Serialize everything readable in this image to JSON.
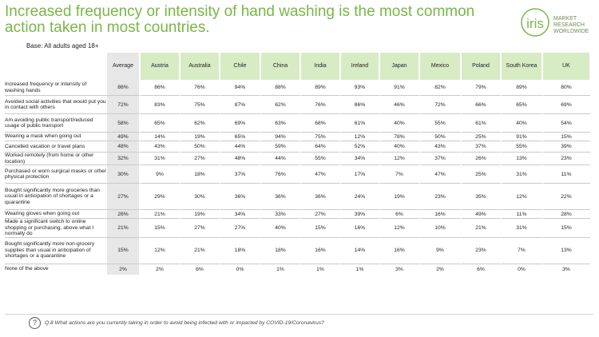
{
  "header": {
    "title": "Increased frequency or intensity of hand washing is the most common action taken in most countries.",
    "base": "Base: All adults aged 18+"
  },
  "logo": {
    "mark": "iris",
    "line1": "MARKET",
    "line2": "RESEARCH",
    "line3": "WORLDWIDE"
  },
  "table": {
    "columns": [
      "Average",
      "Austria",
      "Australia",
      "Chile",
      "China",
      "India",
      "Ireland",
      "Japan",
      "Mexico",
      "Poland",
      "South Korea",
      "UK"
    ],
    "rows": [
      {
        "label": "Increased frequency or intensity of washing hands",
        "values": [
          "86%",
          "86%",
          "76%",
          "94%",
          "88%",
          "89%",
          "93%",
          "91%",
          "82%",
          "79%",
          "89%",
          "80%"
        ]
      },
      {
        "label": "Avoided social activities that would put you in contact with others",
        "values": [
          "72%",
          "83%",
          "75%",
          "87%",
          "62%",
          "76%",
          "86%",
          "46%",
          "72%",
          "66%",
          "65%",
          "69%"
        ]
      },
      {
        "label": "Am avoiding public transport/reduced usage of public transport",
        "values": [
          "58%",
          "65%",
          "62%",
          "69%",
          "63%",
          "68%",
          "61%",
          "40%",
          "55%",
          "61%",
          "40%",
          "54%"
        ]
      },
      {
        "label": "Wearing a mask when going out",
        "values": [
          "49%",
          "14%",
          "19%",
          "65%",
          "94%",
          "75%",
          "12%",
          "78%",
          "50%",
          "25%",
          "91%",
          "15%"
        ]
      },
      {
        "label": "Cancelled vacation or travel plans",
        "values": [
          "48%",
          "43%",
          "50%",
          "44%",
          "59%",
          "64%",
          "52%",
          "40%",
          "43%",
          "37%",
          "55%",
          "39%"
        ]
      },
      {
        "label": "Worked remotely (from home or other location)",
        "values": [
          "32%",
          "31%",
          "27%",
          "48%",
          "44%",
          "55%",
          "34%",
          "12%",
          "37%",
          "26%",
          "13%",
          "23%"
        ]
      },
      {
        "label": "Purchased or worn surgical masks or other physical protection",
        "values": [
          "30%",
          "9%",
          "18%",
          "37%",
          "76%",
          "47%",
          "17%",
          "7%",
          "47%",
          "25%",
          "31%",
          "11%"
        ]
      },
      {
        "label": "Bought significantly more groceries than usual in anticipation of shortages or a quarantine",
        "values": [
          "27%",
          "29%",
          "30%",
          "36%",
          "36%",
          "36%",
          "24%",
          "19%",
          "23%",
          "35%",
          "12%",
          "22%"
        ]
      },
      {
        "label": "Wearing gloves when going out",
        "values": [
          "26%",
          "21%",
          "19%",
          "34%",
          "33%",
          "27%",
          "39%",
          "6%",
          "16%",
          "49%",
          "11%",
          "28%"
        ]
      },
      {
        "label": "Made a significant switch to online shopping or purchasing, above what I normally do",
        "values": [
          "21%",
          "15%",
          "27%",
          "27%",
          "40%",
          "15%",
          "16%",
          "12%",
          "10%",
          "21%",
          "31%",
          "15%"
        ]
      },
      {
        "label": "Bought significantly more non-grocery supplies than usual in anticipation of shortages or a quarantine",
        "values": [
          "15%",
          "12%",
          "21%",
          "18%",
          "18%",
          "16%",
          "14%",
          "16%",
          "9%",
          "23%",
          "7%",
          "13%"
        ]
      },
      {
        "label": "None of the above",
        "values": [
          "2%",
          "2%",
          "6%",
          "0%",
          "1%",
          "1%",
          "1%",
          "3%",
          "2%",
          "6%",
          "0%",
          "3%"
        ]
      }
    ]
  },
  "footer": {
    "icon": "question-circle-icon",
    "glyph": "?",
    "question": "Q.8 What actions are you currently taking in order to avoid being infected with or impacted by COVID-19/Coronavirus?"
  },
  "colors": {
    "title": "#7ab648",
    "header_bg": "#d7ebc4",
    "average_bg": "#e7e7e7"
  }
}
